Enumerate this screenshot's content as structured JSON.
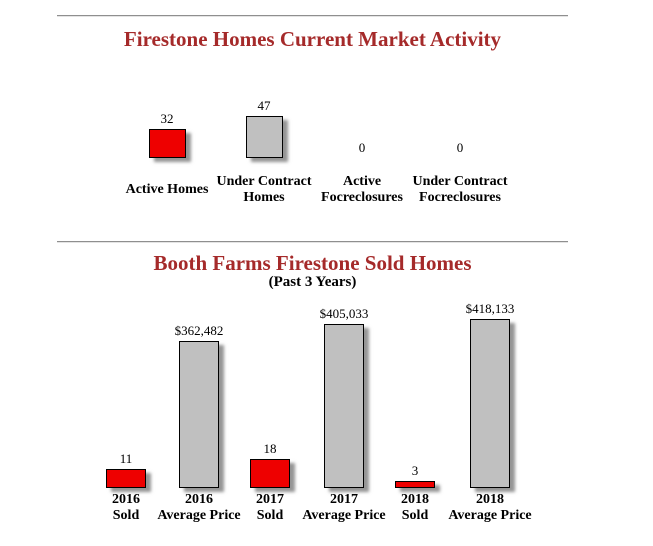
{
  "page": {
    "background": "#ffffff",
    "text_color": "#000000",
    "title_color": "#A52A2A",
    "divider_color": "#8f8f8f"
  },
  "colors": {
    "red_bar": "#EE0000",
    "gray_bar": "#C0C0C0",
    "bar_border": "#000000"
  },
  "chart_data": [
    {
      "type": "bar",
      "title": "Firestone Homes Current Market Activity",
      "categories": [
        "Active Homes",
        "Under Contract Homes",
        "Active Focreclosures",
        "Under Contract Focreclosures"
      ],
      "category_lines": [
        [
          "Active Homes"
        ],
        [
          "Under Contract",
          "Homes"
        ],
        [
          "Active",
          "Focreclosures"
        ],
        [
          "Under Contract",
          "Focreclosures"
        ]
      ],
      "values": [
        32,
        47,
        0,
        0
      ],
      "data_labels": [
        "32",
        "47",
        "0",
        "0"
      ],
      "bar_colors": [
        "#EE0000",
        "#C0C0C0",
        "#C0C0C0",
        "#C0C0C0"
      ],
      "value_kinds": [
        "count",
        "count",
        "count",
        "count"
      ],
      "xlabel": "",
      "ylabel": "",
      "grid": false,
      "legend": false,
      "axes_shown": false
    },
    {
      "type": "bar",
      "title": "Booth Farms Firestone Sold Homes",
      "subtitle": "(Past 3 Years)",
      "categories": [
        "2016 Sold",
        "2016 Average Price",
        "2017 Sold",
        "2017 Average Price",
        "2018 Sold",
        "2018 Average Price"
      ],
      "category_lines": [
        [
          "2016",
          "Sold"
        ],
        [
          "2016",
          "Average Price"
        ],
        [
          "2017",
          "Sold"
        ],
        [
          "2017",
          "Average Price"
        ],
        [
          "2018",
          "Sold"
        ],
        [
          "2018",
          "Average Price"
        ]
      ],
      "values": [
        11,
        362482,
        18,
        405033,
        3,
        418133
      ],
      "data_labels": [
        "11",
        "$362,482",
        "18",
        "$405,033",
        "3",
        "$418,133"
      ],
      "bar_colors": [
        "#EE0000",
        "#C0C0C0",
        "#EE0000",
        "#C0C0C0",
        "#EE0000",
        "#C0C0C0"
      ],
      "value_kinds": [
        "count",
        "price",
        "count",
        "price",
        "count",
        "price"
      ],
      "xlabel": "",
      "ylabel": "",
      "grid": false,
      "legend": false,
      "axes_shown": false
    }
  ]
}
